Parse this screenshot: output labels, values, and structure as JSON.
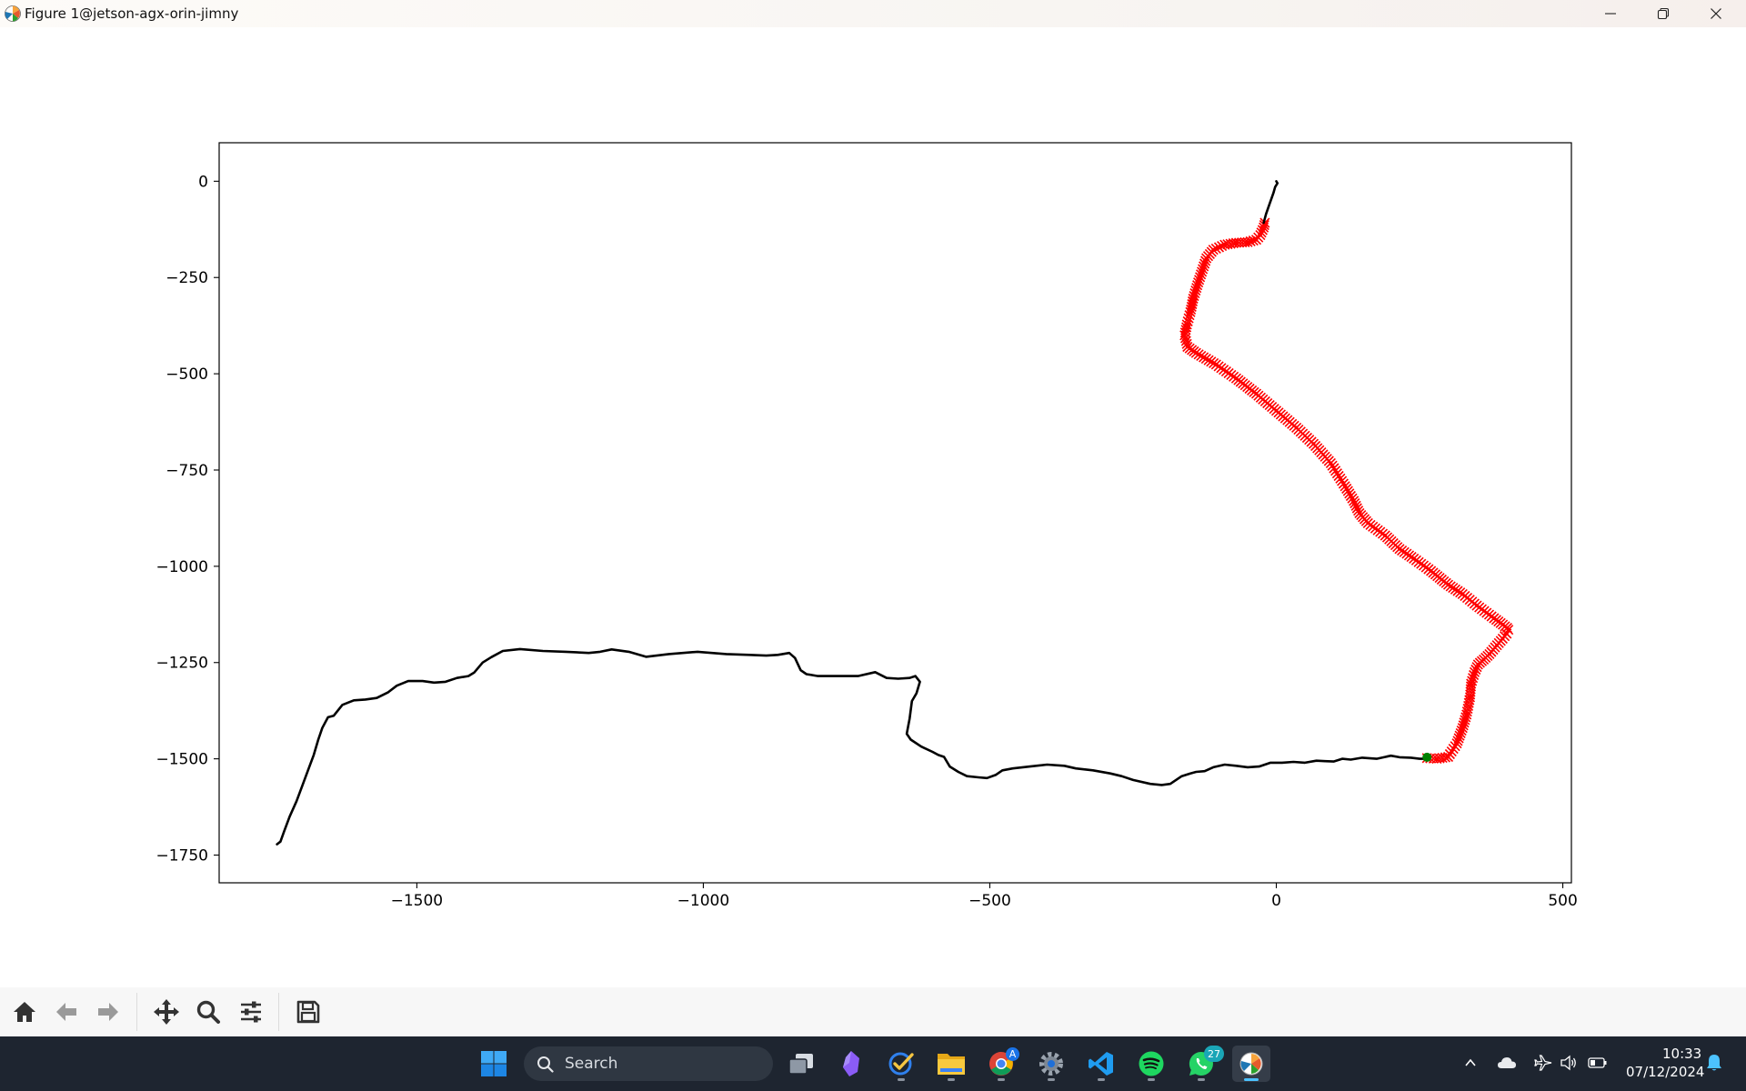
{
  "window": {
    "title": "Figure 1@jetson-agx-orin-jimny",
    "controls": [
      "minimize-icon",
      "restore-icon",
      "close-icon"
    ]
  },
  "chart_data": {
    "type": "line",
    "title": "",
    "xlabel": "",
    "ylabel": "",
    "xlim": [
      -1845,
      515
    ],
    "ylim": [
      -1822,
      100
    ],
    "xticks": [
      -1500,
      -1000,
      -500,
      0,
      500
    ],
    "yticks": [
      0,
      -250,
      -500,
      -750,
      -1000,
      -1250,
      -1500,
      -1750
    ],
    "xtick_labels": [
      "−1500",
      "−1000",
      "−500",
      "0",
      "500"
    ],
    "ytick_labels": [
      "0",
      "−250",
      "−500",
      "−750",
      "−1000",
      "−1250",
      "−1500",
      "−1750"
    ],
    "grid": false,
    "series": [
      {
        "style": "line",
        "color": "#000000",
        "x": [
          -1744,
          -1738,
          -1732,
          -1722,
          -1710,
          -1700,
          -1690,
          -1680,
          -1672,
          -1665,
          -1655,
          -1645,
          -1630,
          -1610,
          -1590,
          -1570,
          -1550,
          -1535,
          -1515,
          -1490,
          -1470,
          -1450,
          -1430,
          -1410,
          -1400,
          -1385,
          -1370,
          -1350,
          -1320,
          -1280,
          -1240,
          -1200,
          -1180,
          -1160,
          -1130,
          -1100,
          -1060,
          -1010,
          -960,
          -920,
          -890,
          -870,
          -850,
          -840,
          -830,
          -820,
          -800,
          -760,
          -730,
          -700,
          -680,
          -660,
          -640,
          -630,
          -622,
          -628,
          -636,
          -640,
          -645,
          -638,
          -620,
          -600,
          -590,
          -580,
          -570,
          -555,
          -540,
          -520,
          -505,
          -490,
          -478,
          -460,
          -430,
          -400,
          -370,
          -350,
          -320,
          -290,
          -270,
          -250,
          -220,
          -200,
          -185,
          -165,
          -150,
          -140,
          -125,
          -110,
          -90,
          -70,
          -50,
          -30,
          -10,
          10,
          30,
          50,
          70,
          85,
          100,
          115,
          130,
          150,
          175,
          200,
          215,
          235,
          250,
          260
        ],
        "y": [
          -1722,
          -1715,
          -1690,
          -1650,
          -1610,
          -1570,
          -1530,
          -1490,
          -1450,
          -1420,
          -1392,
          -1388,
          -1360,
          -1348,
          -1346,
          -1342,
          -1327,
          -1310,
          -1298,
          -1298,
          -1302,
          -1300,
          -1290,
          -1285,
          -1276,
          -1250,
          -1236,
          -1220,
          -1215,
          -1220,
          -1222,
          -1225,
          -1222,
          -1216,
          -1222,
          -1235,
          -1228,
          -1222,
          -1228,
          -1230,
          -1232,
          -1230,
          -1225,
          -1238,
          -1270,
          -1280,
          -1285,
          -1285,
          -1285,
          -1275,
          -1290,
          -1292,
          -1290,
          -1285,
          -1300,
          -1330,
          -1350,
          -1395,
          -1435,
          -1450,
          -1468,
          -1482,
          -1490,
          -1495,
          -1520,
          -1534,
          -1545,
          -1548,
          -1550,
          -1542,
          -1530,
          -1525,
          -1520,
          -1515,
          -1518,
          -1525,
          -1530,
          -1538,
          -1545,
          -1555,
          -1565,
          -1568,
          -1565,
          -1545,
          -1538,
          -1534,
          -1532,
          -1522,
          -1515,
          -1518,
          -1522,
          -1520,
          -1510,
          -1510,
          -1508,
          -1510,
          -1505,
          -1506,
          -1507,
          -1500,
          -1502,
          -1497,
          -1500,
          -1492,
          -1496,
          -1497,
          -1500,
          -1500
        ]
      },
      {
        "style": "x-markers",
        "color": "#ff0000",
        "x": [
          263,
          280,
          300,
          315,
          325,
          332,
          338,
          340,
          346,
          352,
          362,
          372,
          385,
          395,
          402,
          405,
          403,
          380,
          350,
          325,
          300,
          270,
          240,
          215,
          190,
          160,
          145,
          135,
          120,
          95,
          65,
          35,
          0,
          -35,
          -70,
          -105,
          -140,
          -155,
          -160,
          -156,
          -150,
          -145,
          -138,
          -130,
          -122,
          -110,
          -90,
          -70,
          -50,
          -35,
          -28,
          -22,
          -20
        ],
        "y": [
          -1498,
          -1500,
          -1495,
          -1460,
          -1420,
          -1385,
          -1340,
          -1305,
          -1275,
          -1255,
          -1242,
          -1228,
          -1205,
          -1188,
          -1175,
          -1165,
          -1160,
          -1135,
          -1102,
          -1072,
          -1048,
          -1012,
          -980,
          -955,
          -920,
          -888,
          -862,
          -830,
          -792,
          -732,
          -682,
          -640,
          -596,
          -552,
          -512,
          -476,
          -446,
          -430,
          -400,
          -372,
          -340,
          -305,
          -270,
          -235,
          -200,
          -178,
          -165,
          -160,
          -158,
          -152,
          -140,
          -120,
          -108
        ]
      },
      {
        "style": "line",
        "color": "#000000",
        "x": [
          -22,
          -18,
          -12,
          -5,
          -2,
          2,
          0
        ],
        "y": [
          -108,
          -85,
          -60,
          -30,
          -15,
          -5,
          0
        ]
      },
      {
        "style": "point",
        "color": "#008000",
        "x": [
          263
        ],
        "y": [
          -1496
        ]
      }
    ]
  },
  "toolbar": {
    "buttons": [
      "home-icon",
      "back-icon",
      "forward-icon",
      "pan-icon",
      "zoom-icon",
      "configure-subplots-icon",
      "save-icon"
    ]
  },
  "taskbar": {
    "search_placeholder": "Search",
    "apps": [
      "windows-start-icon",
      "task-view-icon",
      "obsidian-icon",
      "todo-icon",
      "file-explorer-icon",
      "chrome-icon",
      "settings-icon",
      "vscode-icon",
      "spotify-icon",
      "whatsapp-icon",
      "matplotlib-figure-icon"
    ],
    "chrome_badge": "A",
    "whatsapp_badge": "27",
    "time": "10:33",
    "date": "07/12/2024",
    "tray_icons": [
      "chevron-up-icon",
      "onedrive-icon",
      "airplane-mode-icon",
      "volume-icon",
      "battery-icon",
      "notification-bell-icon"
    ]
  }
}
